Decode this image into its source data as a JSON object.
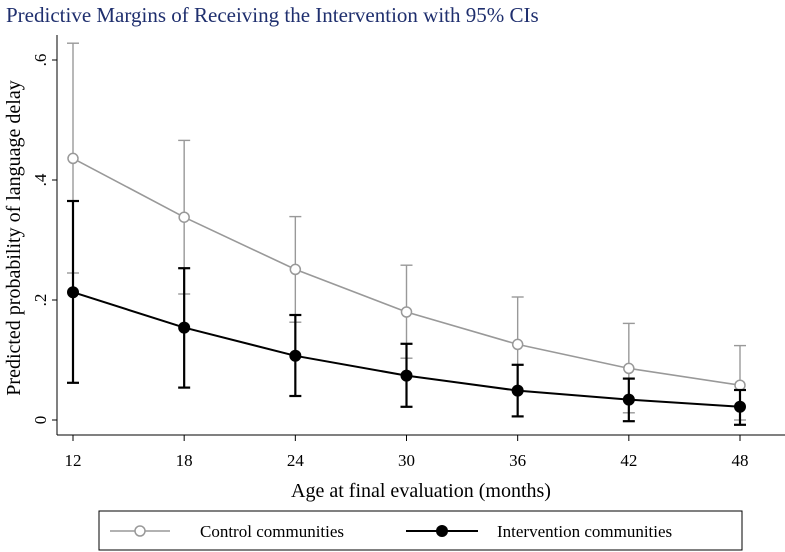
{
  "chart_data": {
    "type": "line",
    "title": "Predictive Margins of Receiving the Intervention with 95% CIs",
    "xlabel": "Age at final evaluation (months)",
    "ylabel": "Predicted probability of language delay",
    "x": [
      12,
      18,
      24,
      30,
      36,
      42,
      48
    ],
    "x_tick_labels": [
      "12",
      "18",
      "24",
      "30",
      "36",
      "42",
      "48"
    ],
    "y_ticks": [
      0,
      0.2,
      0.4,
      0.6
    ],
    "y_tick_labels": [
      "0",
      ".2",
      ".4",
      ".6"
    ],
    "ylim": [
      0,
      0.63
    ],
    "series": [
      {
        "name": "Control communities",
        "color": "#999999",
        "marker": "hollow-circle",
        "values": [
          0.436,
          0.338,
          0.251,
          0.18,
          0.126,
          0.086,
          0.058
        ],
        "ci_low": [
          0.245,
          0.21,
          0.163,
          0.103,
          0.048,
          0.012,
          0.0
        ],
        "ci_high": [
          0.628,
          0.466,
          0.339,
          0.258,
          0.205,
          0.161,
          0.124
        ]
      },
      {
        "name": "Intervention communities",
        "color": "#000000",
        "marker": "filled-circle",
        "values": [
          0.213,
          0.154,
          0.107,
          0.074,
          0.049,
          0.034,
          0.022
        ],
        "ci_low": [
          0.062,
          0.054,
          0.04,
          0.022,
          0.006,
          -0.002,
          -0.008
        ],
        "ci_high": [
          0.365,
          0.253,
          0.175,
          0.127,
          0.092,
          0.069,
          0.05
        ]
      }
    ],
    "legend_position": "bottom"
  }
}
